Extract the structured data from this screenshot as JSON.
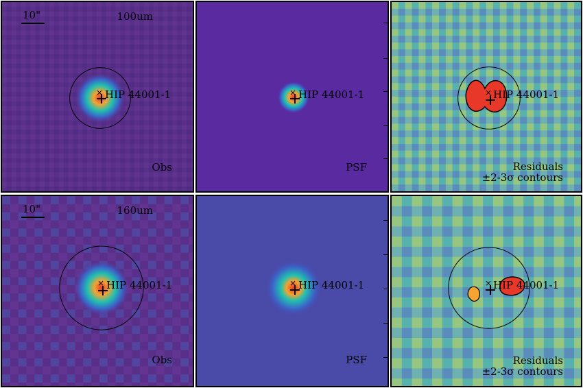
{
  "panels": [
    {
      "id": "r1c1",
      "bottom_label": "Obs",
      "band_label": "100um",
      "scale_label": "10\"",
      "target_label": "HIP 44001-1"
    },
    {
      "id": "r1c2",
      "bottom_label": "PSF",
      "target_label": "HIP 44001-1"
    },
    {
      "id": "r1c3",
      "bottom_label_line1": "Residuals",
      "bottom_label_line2": "±2-3σ contours",
      "target_label": "HIP 44001-1"
    },
    {
      "id": "r2c1",
      "bottom_label": "Obs",
      "band_label": "160um",
      "scale_label": "10\"",
      "target_label": "HIP 44001-1"
    },
    {
      "id": "r2c2",
      "bottom_label": "PSF",
      "target_label": "HIP 44001-1"
    },
    {
      "id": "r2c3",
      "bottom_label_line1": "Residuals",
      "bottom_label_line2": "±2-3σ contours",
      "target_label": "HIP 44001-1"
    }
  ],
  "colors": {
    "obs_bg": "#5a2f8a",
    "psf_bg": "#5a2aa0",
    "psf_bg_160": "#4a4aa8",
    "residual_bg": "#6fb1b0",
    "hot": "#e8382a",
    "warm": "#f4a430",
    "mid": "#21c0b0"
  }
}
